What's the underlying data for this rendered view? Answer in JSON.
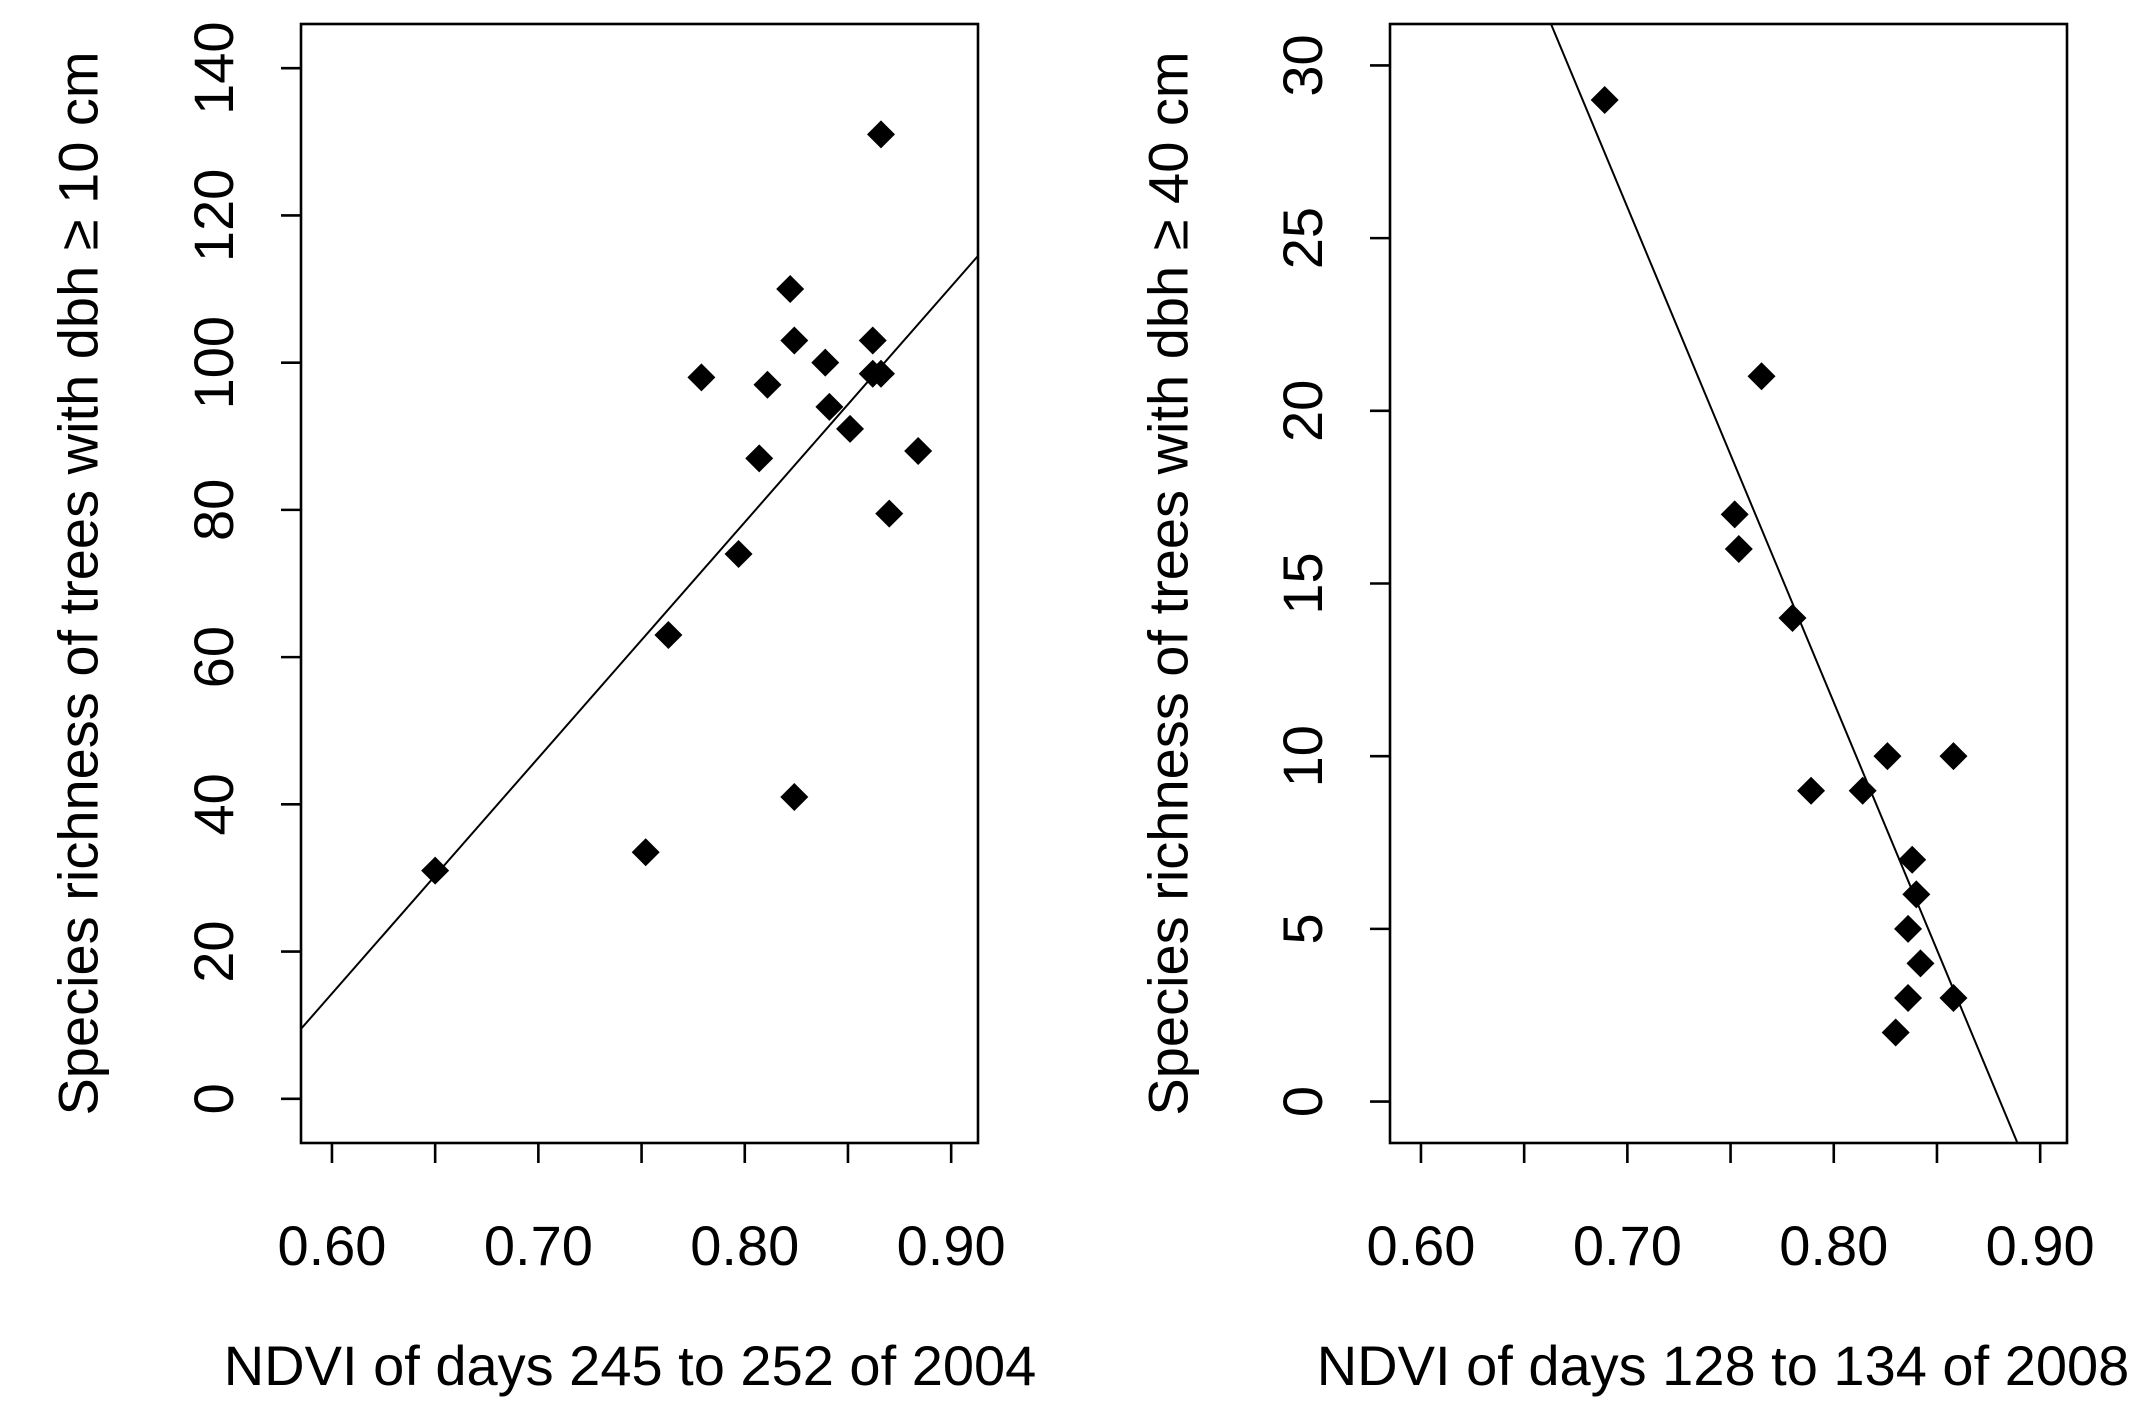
{
  "chart_data": [
    {
      "type": "scatter",
      "title": "",
      "xlabel": "NDVI of days 245 to 252 of 2004",
      "ylabel": "Species richness of trees with dbh ≥ 10 cm",
      "xlim": [
        0.585,
        0.913
      ],
      "ylim": [
        -6,
        146
      ],
      "x_ticks": [
        0.6,
        0.65,
        0.7,
        0.75,
        0.8,
        0.85,
        0.9
      ],
      "x_tick_labels": [
        "0.60",
        "",
        "0.70",
        "",
        "0.80",
        "",
        "0.90"
      ],
      "y_ticks": [
        0,
        20,
        40,
        60,
        80,
        100,
        120,
        140
      ],
      "y_tick_labels": [
        "0",
        "20",
        "40",
        "60",
        "80",
        "100",
        "120",
        "140"
      ],
      "points": [
        [
          0.65,
          31
        ],
        [
          0.752,
          33.5
        ],
        [
          0.763,
          63
        ],
        [
          0.779,
          98
        ],
        [
          0.797,
          74
        ],
        [
          0.807,
          87
        ],
        [
          0.811,
          97
        ],
        [
          0.822,
          110
        ],
        [
          0.824,
          103
        ],
        [
          0.824,
          41
        ],
        [
          0.839,
          100
        ],
        [
          0.841,
          94
        ],
        [
          0.851,
          91
        ],
        [
          0.862,
          103
        ],
        [
          0.862,
          98.5
        ],
        [
          0.866,
          98.5
        ],
        [
          0.866,
          131
        ],
        [
          0.87,
          79.5
        ],
        [
          0.884,
          88
        ]
      ],
      "regression_line": {
        "x": [
          0.585,
          0.913
        ],
        "y": [
          9.5,
          114.5
        ]
      }
    },
    {
      "type": "scatter",
      "title": "",
      "xlabel": "NDVI of days 128 to 134 of 2008",
      "ylabel": "Species richness of trees with dbh ≥ 40 cm",
      "xlim": [
        0.585,
        0.913
      ],
      "ylim": [
        -1.2,
        31.2
      ],
      "x_ticks": [
        0.6,
        0.65,
        0.7,
        0.75,
        0.8,
        0.85,
        0.9
      ],
      "x_tick_labels": [
        "0.60",
        "",
        "0.70",
        "",
        "0.80",
        "",
        "0.90"
      ],
      "y_ticks": [
        0,
        5,
        10,
        15,
        20,
        25,
        30
      ],
      "y_tick_labels": [
        "0",
        "5",
        "10",
        "15",
        "20",
        "25",
        "30"
      ],
      "points": [
        [
          0.689,
          29
        ],
        [
          0.765,
          21
        ],
        [
          0.752,
          17
        ],
        [
          0.754,
          16
        ],
        [
          0.78,
          14
        ],
        [
          0.789,
          9
        ],
        [
          0.814,
          9
        ],
        [
          0.826,
          10
        ],
        [
          0.858,
          10
        ],
        [
          0.838,
          7
        ],
        [
          0.84,
          6
        ],
        [
          0.836,
          5
        ],
        [
          0.842,
          4
        ],
        [
          0.836,
          3
        ],
        [
          0.858,
          3
        ],
        [
          0.83,
          2
        ]
      ],
      "regression_line": {
        "x": [
          0.663,
          0.889
        ],
        "y": [
          31.2,
          -1.2
        ]
      }
    }
  ]
}
